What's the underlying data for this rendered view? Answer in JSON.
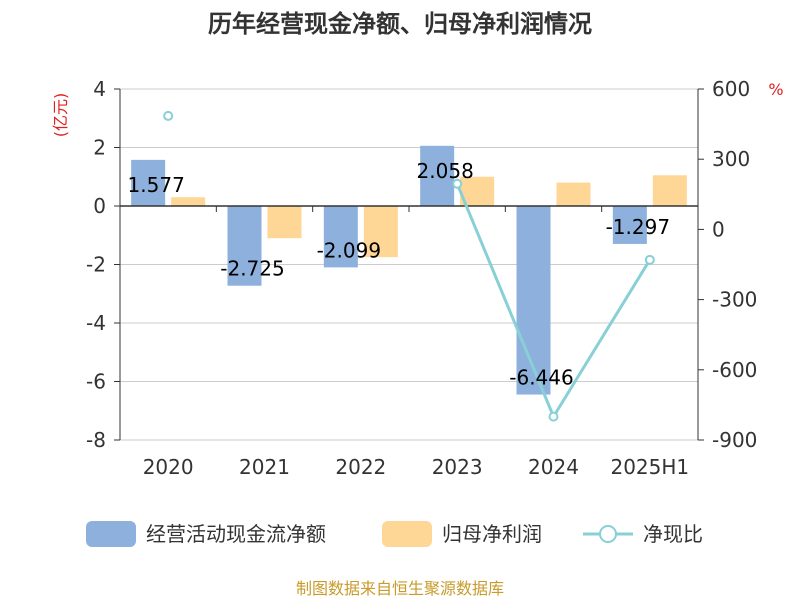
{
  "chart_data": {
    "type": "bar",
    "title": "历年经营现金净额、归母净利润情况",
    "categories": [
      "2020",
      "2021",
      "2022",
      "2023",
      "2024",
      "2025H1"
    ],
    "y_left": {
      "unit": "(亿元)",
      "ylim": [
        -8,
        4
      ],
      "ticks": [
        4,
        2,
        0,
        -2,
        -4,
        -6,
        -8
      ]
    },
    "y_right": {
      "unit": "%",
      "ylim": [
        -900,
        600
      ],
      "ticks": [
        600,
        300,
        0,
        -300,
        -600,
        -900
      ]
    },
    "grid": true,
    "legend_position": "bottom",
    "series": [
      {
        "name": "经营活动现金流净额",
        "kind": "bar",
        "axis": "left",
        "color": "#8eb0dc",
        "values": [
          1.577,
          -2.725,
          -2.099,
          2.058,
          -6.446,
          -1.297
        ],
        "labels": [
          "1.577",
          "-2.725",
          "-2.099",
          "2.058",
          "-6.446",
          "-1.297"
        ]
      },
      {
        "name": "归母净利润",
        "kind": "bar",
        "axis": "left",
        "color": "#fed696",
        "values": [
          0.3,
          -1.1,
          -1.75,
          1.0,
          0.8,
          1.05
        ]
      },
      {
        "name": "净现比",
        "kind": "line",
        "axis": "right",
        "color": "#88d0d6",
        "values": [
          485,
          null,
          null,
          195,
          -800,
          -130
        ]
      }
    ]
  },
  "source_note": "制图数据来自恒生聚源数据库"
}
